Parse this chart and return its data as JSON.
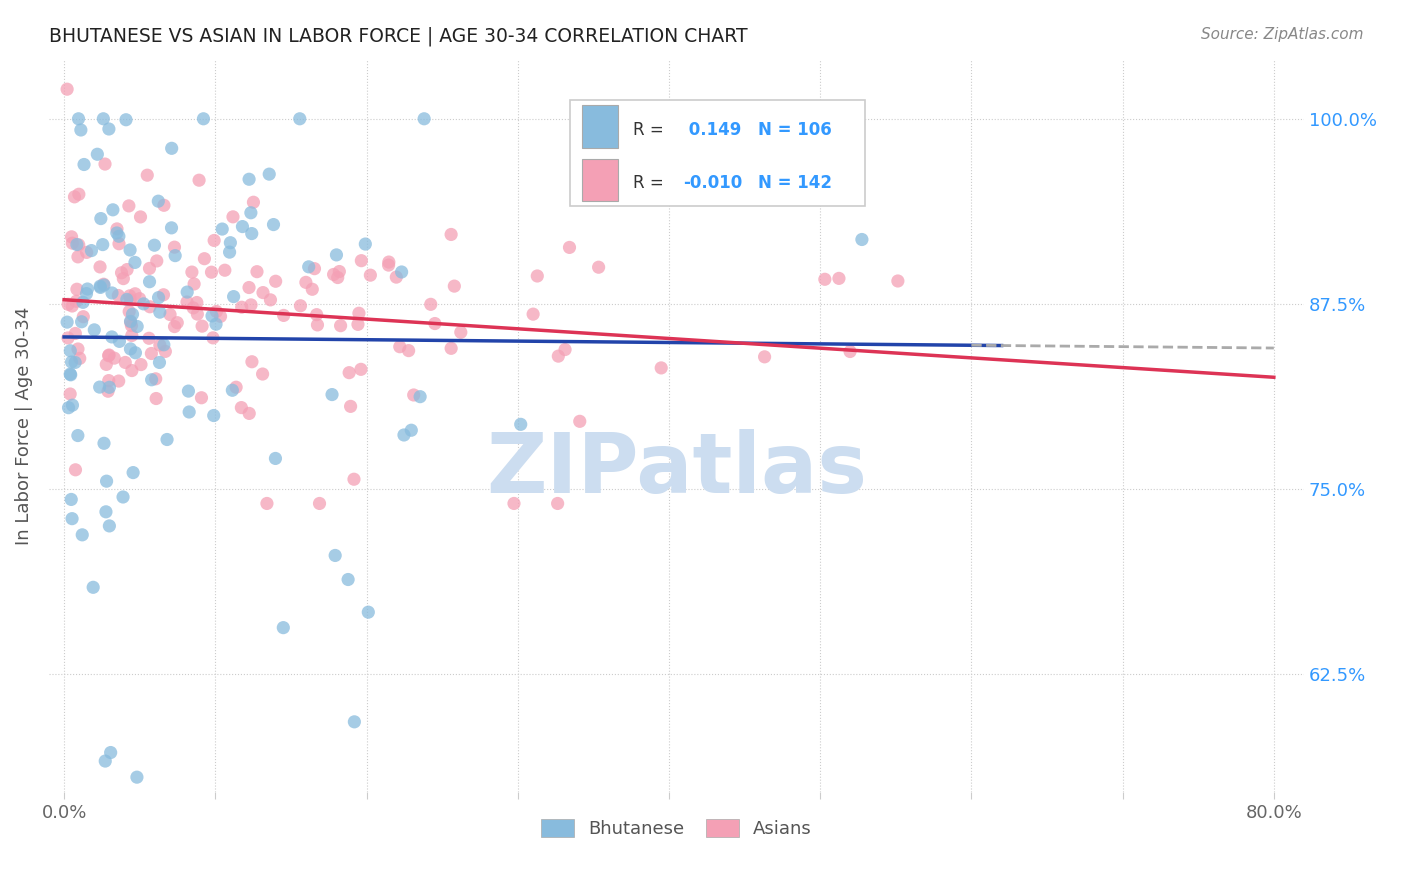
{
  "title": "BHUTANESE VS ASIAN IN LABOR FORCE | AGE 30-34 CORRELATION CHART",
  "source": "Source: ZipAtlas.com",
  "ylabel": "In Labor Force | Age 30-34",
  "xlim": [
    -0.01,
    0.82
  ],
  "ylim": [
    0.545,
    1.04
  ],
  "ytick_vals": [
    0.625,
    0.75,
    0.875,
    1.0
  ],
  "ytick_labels": [
    "62.5%",
    "75.0%",
    "87.5%",
    "100.0%"
  ],
  "xtick_vals": [
    0.0,
    0.1,
    0.2,
    0.3,
    0.4,
    0.5,
    0.6,
    0.7,
    0.8
  ],
  "xtick_labels": [
    "0.0%",
    "",
    "",
    "",
    "",
    "",
    "",
    "",
    "80.0%"
  ],
  "R_blue": 0.149,
  "N_blue": 106,
  "R_pink": -0.01,
  "N_pink": 142,
  "blue_color": "#88bbdd",
  "pink_color": "#f4a0b5",
  "trend_blue_solid_color": "#2244aa",
  "trend_blue_dashed_color": "#aaaaaa",
  "trend_pink_color": "#dd3355",
  "watermark": "ZIPatlas",
  "watermark_color": "#ccddf0",
  "legend_label_blue": "Bhutanese",
  "legend_label_pink": "Asians",
  "blue_seed": 77,
  "pink_seed": 55,
  "trend_solid_end": 0.62,
  "trend_dashed_start": 0.6
}
